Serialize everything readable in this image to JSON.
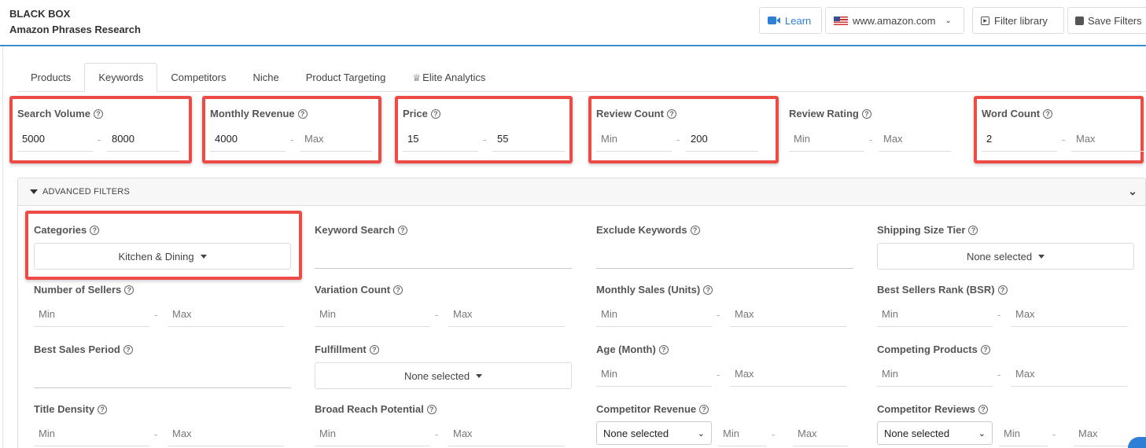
{
  "header": {
    "title": "BLACK BOX",
    "subtitle": "Amazon Phrases Research"
  },
  "toolbar": {
    "learn": "Learn",
    "marketplace": "www.amazon.com",
    "filter_library": "Filter library",
    "save_filters": "Save Filters",
    "accent": "#2e7fd6"
  },
  "tabs": [
    {
      "label": "Products"
    },
    {
      "label": "Keywords",
      "active": true
    },
    {
      "label": "Competitors"
    },
    {
      "label": "Niche"
    },
    {
      "label": "Product Targeting"
    },
    {
      "label": "Elite Analytics"
    }
  ],
  "top_filters": [
    {
      "label": "Search Volume",
      "min": "5000",
      "max": "8000",
      "highlighted": true
    },
    {
      "label": "Monthly Revenue",
      "min": "4000",
      "max": "",
      "highlighted": true
    },
    {
      "label": "Price",
      "min": "15",
      "max": "55",
      "highlighted": true
    },
    {
      "label": "Review Count",
      "min": "",
      "max": "200",
      "highlighted": true
    },
    {
      "label": "Review Rating",
      "min": "",
      "max": "",
      "highlighted": false
    },
    {
      "label": "Word Count",
      "min": "2",
      "max": "",
      "highlighted": true
    }
  ],
  "placeholders": {
    "min": "Min",
    "max": "Max"
  },
  "advanced": {
    "title": "ADVANCED FILTERS",
    "categories": {
      "label": "Categories",
      "value": "Kitchen & Dining"
    },
    "keyword_search": {
      "label": "Keyword Search",
      "value": ""
    },
    "exclude_keywords": {
      "label": "Exclude Keywords",
      "value": ""
    },
    "shipping_size_tier": {
      "label": "Shipping Size Tier",
      "value": "None selected"
    },
    "number_of_sellers": {
      "label": "Number of Sellers"
    },
    "variation_count": {
      "label": "Variation Count"
    },
    "monthly_sales": {
      "label": "Monthly Sales (Units)"
    },
    "bsr": {
      "label": "Best Sellers Rank (BSR)"
    },
    "best_sales_period": {
      "label": "Best Sales Period",
      "value": ""
    },
    "fulfillment": {
      "label": "Fulfillment",
      "value": "None selected"
    },
    "age": {
      "label": "Age (Month)"
    },
    "competing_products": {
      "label": "Competing Products"
    },
    "title_density": {
      "label": "Title Density"
    },
    "broad_reach": {
      "label": "Broad Reach Potential"
    },
    "competitor_revenue": {
      "label": "Competitor Revenue",
      "select": "None selected"
    },
    "competitor_reviews": {
      "label": "Competitor Reviews",
      "select": "None selected"
    }
  }
}
